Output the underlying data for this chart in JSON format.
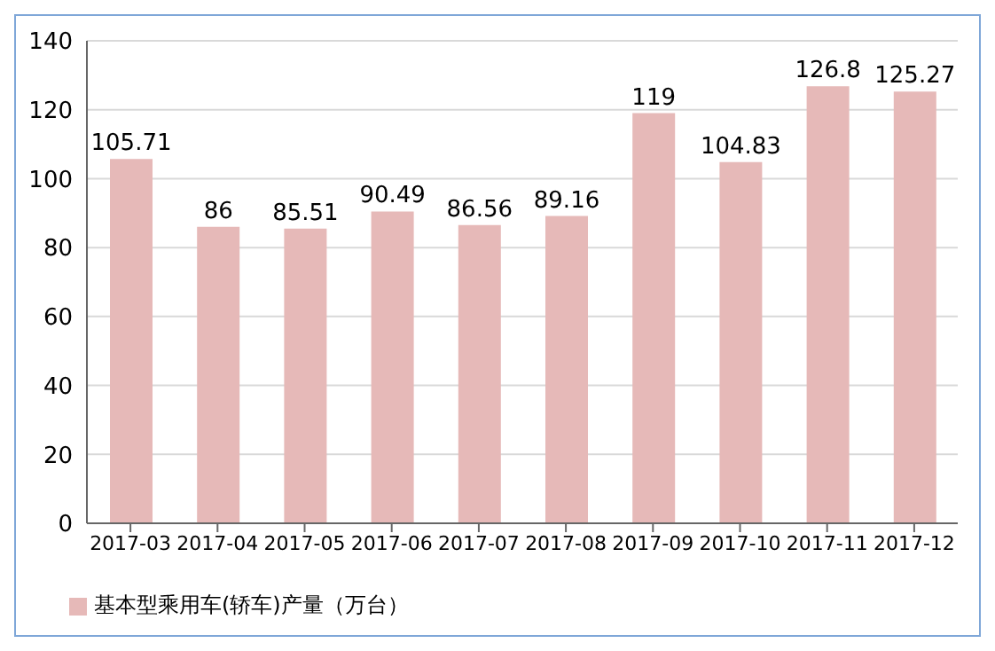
{
  "chart_data": {
    "type": "bar",
    "categories": [
      "2017-03",
      "2017-04",
      "2017-05",
      "2017-06",
      "2017-07",
      "2017-08",
      "2017-09",
      "2017-10",
      "2017-11",
      "2017-12"
    ],
    "series": [
      {
        "name": "基本型乘用车(轿车)产量（万台）",
        "color": "#e6b9b8",
        "values": [
          105.71,
          86,
          85.51,
          90.49,
          86.56,
          89.16,
          119,
          104.83,
          126.8,
          125.27
        ]
      }
    ],
    "ylim": [
      0,
      140
    ],
    "yticks": [
      0,
      20,
      40,
      60,
      80,
      100,
      120,
      140
    ],
    "grid": "y",
    "legend": "bottom left",
    "data_labels": true
  }
}
